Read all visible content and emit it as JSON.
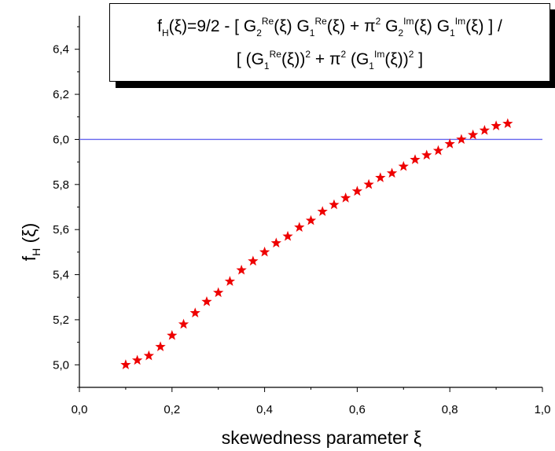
{
  "chart_data": {
    "type": "scatter",
    "title_line1": [
      {
        "t": "f",
        "k": "n"
      },
      {
        "t": "H",
        "k": "sub"
      },
      {
        "t": "(ξ)=9/2 - [ G",
        "k": "n"
      },
      {
        "t": "2",
        "k": "sub"
      },
      {
        "t": "Re",
        "k": "sup"
      },
      {
        "t": "(ξ) G",
        "k": "n"
      },
      {
        "t": "1",
        "k": "sub"
      },
      {
        "t": "Re",
        "k": "sup"
      },
      {
        "t": "(ξ) + π",
        "k": "n"
      },
      {
        "t": "2",
        "k": "sup"
      },
      {
        "t": " G",
        "k": "n"
      },
      {
        "t": "2",
        "k": "sub"
      },
      {
        "t": "Im",
        "k": "sup"
      },
      {
        "t": "(ξ) G",
        "k": "n"
      },
      {
        "t": "1",
        "k": "sub"
      },
      {
        "t": "Im",
        "k": "sup"
      },
      {
        "t": "(ξ) ] /",
        "k": "n"
      }
    ],
    "title_line2": [
      {
        "t": "[ (G",
        "k": "n"
      },
      {
        "t": "1",
        "k": "sub"
      },
      {
        "t": "Re",
        "k": "sup"
      },
      {
        "t": "(ξ))",
        "k": "n"
      },
      {
        "t": "2",
        "k": "sup"
      },
      {
        "t": " + π",
        "k": "n"
      },
      {
        "t": "2",
        "k": "sup"
      },
      {
        "t": " (G",
        "k": "n"
      },
      {
        "t": "1",
        "k": "sub"
      },
      {
        "t": "Im",
        "k": "sup"
      },
      {
        "t": "(ξ))",
        "k": "n"
      },
      {
        "t": "2",
        "k": "sup"
      },
      {
        "t": " ]",
        "k": "n"
      }
    ],
    "xlabel": "skewedness parameter ξ",
    "ylabel_main": "f",
    "ylabel_sub": "H",
    "ylabel_tail": " (ξ)",
    "xlim": [
      0.0,
      1.0
    ],
    "ylim": [
      4.9,
      6.5
    ],
    "xticks": [
      0.0,
      0.2,
      0.4,
      0.6,
      0.8,
      1.0
    ],
    "xtick_labels": [
      "0,0",
      "0,2",
      "0,4",
      "0,6",
      "0,8",
      "1,0"
    ],
    "yticks": [
      5.0,
      5.2,
      5.4,
      5.6,
      5.8,
      6.0,
      6.2,
      6.4
    ],
    "ytick_labels": [
      "5,0",
      "5,2",
      "5,4",
      "5,6",
      "5,8",
      "6,0",
      "6,2",
      "6,4"
    ],
    "reference_line": {
      "y": 6.0,
      "color": "#6666ee"
    },
    "marker": "star",
    "marker_color": "#ee0000",
    "series": [
      {
        "x": [
          0.1,
          0.125,
          0.15,
          0.175,
          0.2,
          0.225,
          0.25,
          0.275,
          0.3,
          0.325,
          0.35,
          0.375,
          0.4,
          0.425,
          0.45,
          0.475,
          0.5,
          0.525,
          0.55,
          0.575,
          0.6,
          0.625,
          0.65,
          0.675,
          0.7,
          0.725,
          0.75,
          0.775,
          0.8,
          0.825,
          0.85,
          0.875,
          0.9,
          0.925
        ],
        "y": [
          5.0,
          5.02,
          5.04,
          5.08,
          5.13,
          5.18,
          5.23,
          5.28,
          5.32,
          5.37,
          5.42,
          5.46,
          5.5,
          5.54,
          5.57,
          5.61,
          5.64,
          5.68,
          5.71,
          5.74,
          5.77,
          5.8,
          5.83,
          5.85,
          5.88,
          5.91,
          5.93,
          5.95,
          5.98,
          6.0,
          6.02,
          6.04,
          6.06,
          6.07
        ]
      }
    ]
  }
}
